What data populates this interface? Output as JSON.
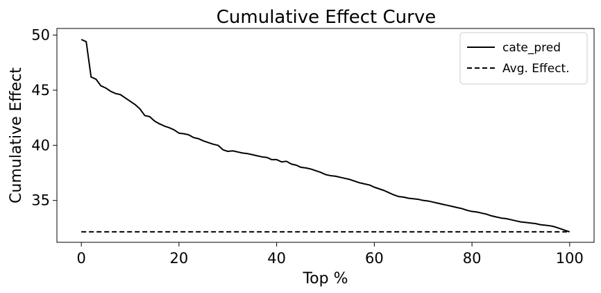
{
  "chart_data": {
    "type": "line",
    "title": "Cumulative Effect Curve",
    "xlabel": "Top %",
    "ylabel": "Cumulative Effect",
    "xlim": [
      -5,
      105
    ],
    "ylim": [
      31.2,
      50.6
    ],
    "xticks": [
      0,
      20,
      40,
      60,
      80,
      100
    ],
    "yticks": [
      35,
      40,
      45,
      50
    ],
    "grid": false,
    "legend_position": "top-right",
    "series": [
      {
        "name": "cate_pred",
        "style": "solid",
        "color": "#000000",
        "x": [
          0,
          1,
          2,
          3,
          4,
          5,
          6,
          7,
          8,
          9,
          10,
          11,
          12,
          13,
          14,
          15,
          16,
          17,
          18,
          19,
          20,
          21,
          22,
          23,
          24,
          25,
          26,
          27,
          28,
          29,
          30,
          31,
          32,
          33,
          34,
          35,
          36,
          37,
          38,
          39,
          40,
          41,
          42,
          43,
          44,
          45,
          46,
          47,
          48,
          49,
          50,
          51,
          52,
          53,
          54,
          55,
          56,
          57,
          58,
          59,
          60,
          61,
          62,
          63,
          64,
          65,
          66,
          67,
          68,
          69,
          70,
          71,
          72,
          73,
          74,
          75,
          76,
          77,
          78,
          79,
          80,
          81,
          82,
          83,
          84,
          85,
          86,
          87,
          88,
          89,
          90,
          91,
          92,
          93,
          94,
          95,
          96,
          97,
          98,
          99,
          100
        ],
        "y": [
          49.6,
          49.4,
          46.2,
          46.0,
          45.4,
          45.2,
          44.9,
          44.7,
          44.6,
          44.3,
          44.0,
          43.7,
          43.3,
          42.7,
          42.6,
          42.2,
          41.95,
          41.75,
          41.6,
          41.4,
          41.1,
          41.05,
          40.95,
          40.7,
          40.6,
          40.4,
          40.25,
          40.1,
          40.0,
          39.6,
          39.45,
          39.5,
          39.4,
          39.3,
          39.25,
          39.15,
          39.05,
          38.95,
          38.9,
          38.7,
          38.7,
          38.5,
          38.55,
          38.3,
          38.2,
          38.0,
          37.95,
          37.85,
          37.7,
          37.55,
          37.35,
          37.25,
          37.2,
          37.1,
          37.0,
          36.9,
          36.75,
          36.6,
          36.5,
          36.4,
          36.2,
          36.05,
          35.9,
          35.7,
          35.5,
          35.35,
          35.3,
          35.2,
          35.15,
          35.1,
          35.0,
          34.95,
          34.85,
          34.75,
          34.65,
          34.55,
          34.45,
          34.35,
          34.25,
          34.1,
          34.0,
          33.95,
          33.85,
          33.75,
          33.6,
          33.5,
          33.4,
          33.35,
          33.25,
          33.15,
          33.05,
          33.0,
          32.95,
          32.9,
          32.8,
          32.75,
          32.7,
          32.6,
          32.45,
          32.3,
          32.15
        ]
      },
      {
        "name": "Avg. Effect.",
        "style": "dashed",
        "color": "#000000",
        "x": [
          0,
          100
        ],
        "y": [
          32.15,
          32.15
        ]
      }
    ]
  }
}
